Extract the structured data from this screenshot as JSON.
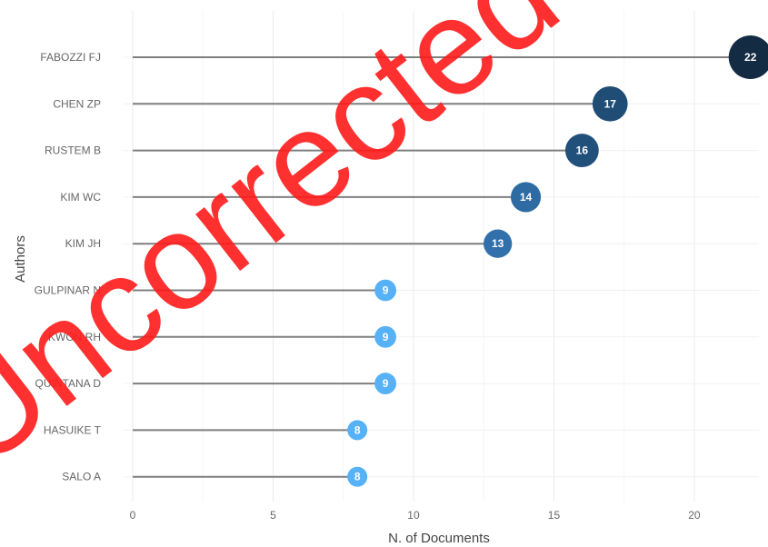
{
  "watermark": {
    "text": "Uncorrected"
  },
  "chart_data": {
    "type": "lollipop",
    "xlabel": "N. of Documents",
    "ylabel": "Authors",
    "xlim": [
      0,
      22.3
    ],
    "xticks": [
      0,
      5,
      10,
      15,
      20
    ],
    "grid": true,
    "categories": [
      "FABOZZI FJ",
      "CHEN ZP",
      "RUSTEM B",
      "KIM WC",
      "KIM JH",
      "GULPINAR N",
      "KWON RH",
      "QUINTANA D",
      "HASUIKE T",
      "SALO A"
    ],
    "values": [
      22,
      17,
      16,
      14,
      13,
      9,
      9,
      9,
      8,
      8
    ],
    "colors": [
      "#132b43",
      "#1f4d75",
      "#21507b",
      "#2e6ba3",
      "#3270ab",
      "#56b1f7",
      "#56b1f7",
      "#56b1f7",
      "#56b1f7",
      "#56b1f7"
    ],
    "stem_color": "#7f7f7f"
  }
}
